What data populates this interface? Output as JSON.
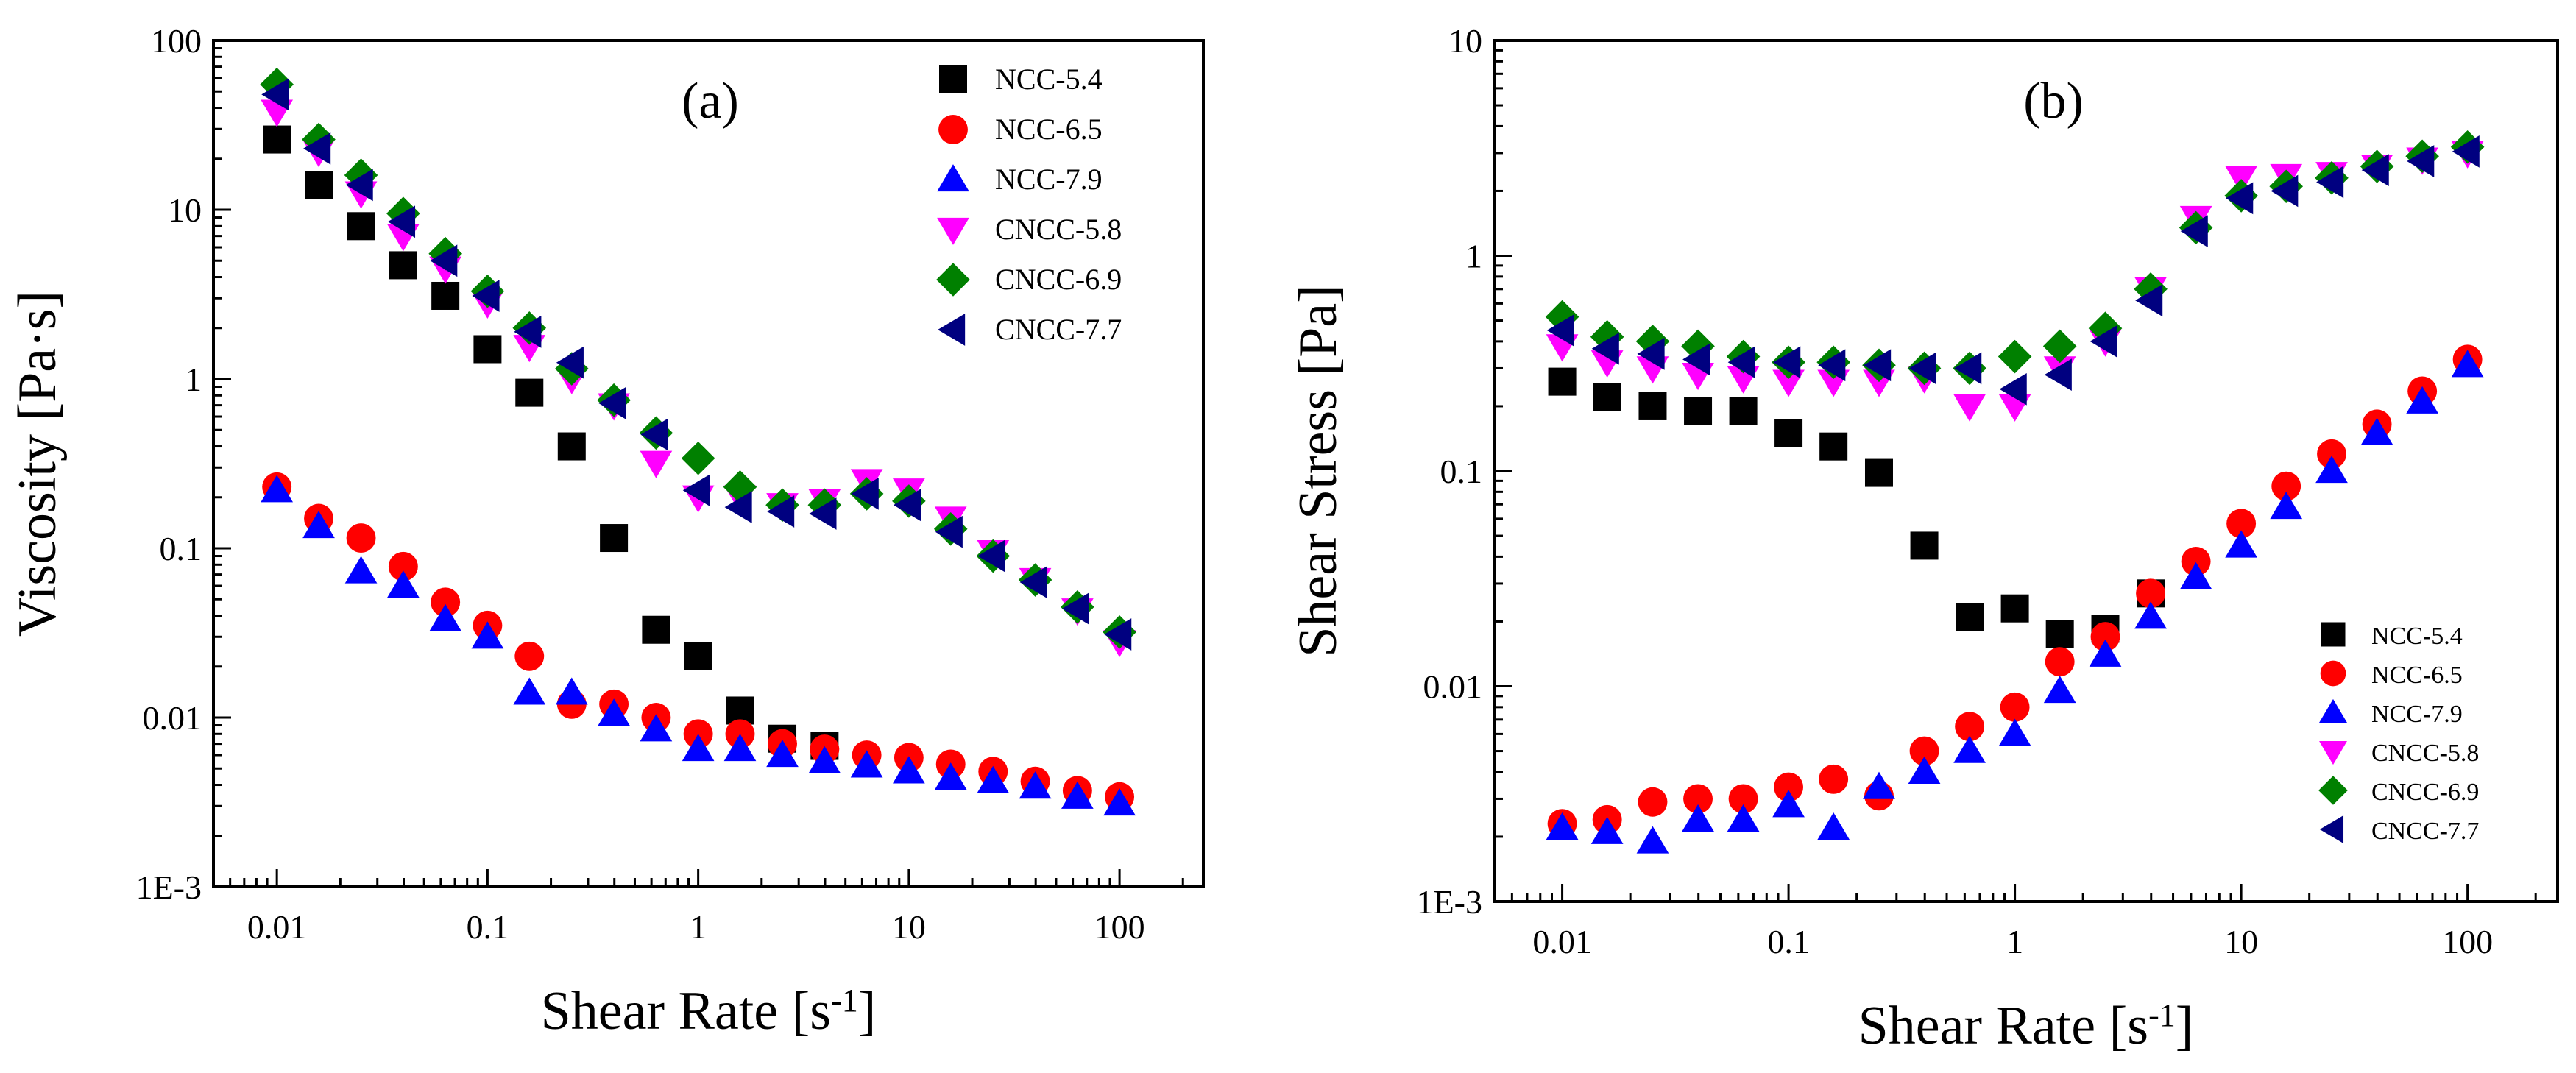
{
  "colors": {
    "NCC-5.4": "#000000",
    "NCC-6.5": "#ff0000",
    "NCC-7.9": "#0000ff",
    "CNCC-5.8": "#ff00ff",
    "CNCC-6.9": "#008000",
    "CNCC-7.7": "#000080"
  },
  "markers": {
    "NCC-5.4": "square",
    "NCC-6.5": "circle",
    "NCC-7.9": "triangle-up",
    "CNCC-5.8": "triangle-down",
    "CNCC-6.9": "diamond",
    "CNCC-7.7": "triangle-left"
  },
  "chart_data": [
    {
      "type": "scatter",
      "panel_label": "(a)",
      "title": "",
      "xlabel": "Shear Rate [s",
      "xlabel_sup": "-1",
      "xlabel_end": "]",
      "ylabel": "Viscosity [Pa·s]",
      "xscale": "log",
      "yscale": "log",
      "xlim": [
        0.005,
        250
      ],
      "ylim": [
        0.001,
        100
      ],
      "xticks": [
        0.01,
        0.1,
        1,
        10,
        100
      ],
      "xtick_labels": [
        "0.01",
        "0.1",
        "1",
        "10",
        "100"
      ],
      "yticks": [
        0.001,
        0.01,
        0.1,
        1,
        10,
        100
      ],
      "ytick_labels": [
        "1E-3",
        "0.01",
        "0.1",
        "1",
        "10",
        "100"
      ],
      "legend_position": "top-right",
      "x": [
        0.01,
        0.0158,
        0.0251,
        0.0398,
        0.0631,
        0.1,
        0.158,
        0.251,
        0.398,
        0.631,
        1,
        1.58,
        2.51,
        3.98,
        6.31,
        10,
        15.8,
        25.1,
        39.8,
        63.1,
        100
      ],
      "series": [
        {
          "name": "NCC-5.4",
          "values": [
            26,
            14,
            8,
            4.7,
            3.1,
            1.5,
            0.83,
            0.4,
            0.115,
            0.033,
            0.023,
            0.011,
            0.0075,
            0.0068,
            null,
            null,
            null,
            null,
            null,
            null,
            null
          ]
        },
        {
          "name": "NCC-6.5",
          "values": [
            0.23,
            0.15,
            0.115,
            0.078,
            0.048,
            0.035,
            0.023,
            0.012,
            0.012,
            0.01,
            0.008,
            0.008,
            0.007,
            0.0065,
            0.006,
            0.0058,
            0.0053,
            0.0048,
            0.0042,
            0.0037,
            0.0034
          ]
        },
        {
          "name": "NCC-7.9",
          "values": [
            0.22,
            0.135,
            0.073,
            0.06,
            0.038,
            0.03,
            0.014,
            0.014,
            0.0105,
            0.0085,
            0.0065,
            0.0065,
            0.006,
            0.0055,
            0.0052,
            0.0048,
            0.0044,
            0.0042,
            0.0039,
            0.0034,
            0.0031
          ]
        },
        {
          "name": "CNCC-5.8",
          "values": [
            38,
            22,
            12.5,
            7,
            4.5,
            2.8,
            1.55,
            1.0,
            0.7,
            0.32,
            0.2,
            0.2,
            0.18,
            0.19,
            0.25,
            0.22,
            0.15,
            0.095,
            0.065,
            0.043,
            0.028
          ]
        },
        {
          "name": "CNCC-6.9",
          "values": [
            55,
            26,
            16,
            9.5,
            5.5,
            3.3,
            2.0,
            1.15,
            0.75,
            0.48,
            0.34,
            0.23,
            0.18,
            0.18,
            0.21,
            0.19,
            0.13,
            0.09,
            0.065,
            0.045,
            0.032
          ]
        },
        {
          "name": "CNCC-7.7",
          "values": [
            48,
            23,
            14,
            8.5,
            5,
            3.1,
            1.9,
            1.25,
            0.72,
            0.47,
            0.22,
            0.175,
            0.165,
            0.16,
            0.21,
            0.18,
            0.125,
            0.09,
            0.063,
            0.044,
            0.031
          ]
        }
      ]
    },
    {
      "type": "scatter",
      "panel_label": "(b)",
      "title": "",
      "xlabel": "Shear Rate [s",
      "xlabel_sup": "-1",
      "xlabel_end": "]",
      "ylabel": "Shear Stress [Pa]",
      "xscale": "log",
      "yscale": "log",
      "xlim": [
        0.005,
        250
      ],
      "ylim": [
        0.001,
        10
      ],
      "xticks": [
        0.01,
        0.1,
        1,
        10,
        100
      ],
      "xtick_labels": [
        "0.01",
        "0.1",
        "1",
        "10",
        "100"
      ],
      "yticks": [
        0.001,
        0.01,
        0.1,
        1,
        10
      ],
      "ytick_labels": [
        "1E-3",
        "0.01",
        "0.1",
        "1",
        "10"
      ],
      "legend_position": "bottom-right",
      "x": [
        0.01,
        0.0158,
        0.0251,
        0.0398,
        0.0631,
        0.1,
        0.158,
        0.251,
        0.398,
        0.631,
        1,
        1.58,
        2.51,
        3.98,
        6.31,
        10,
        15.8,
        25.1,
        39.8,
        63.1,
        100
      ],
      "series": [
        {
          "name": "NCC-5.4",
          "values": [
            0.26,
            0.22,
            0.2,
            0.19,
            0.19,
            0.15,
            0.13,
            0.098,
            0.045,
            0.021,
            0.023,
            0.0175,
            0.0185,
            0.027,
            null,
            null,
            null,
            null,
            null,
            null,
            null
          ]
        },
        {
          "name": "NCC-6.5",
          "values": [
            0.0023,
            0.0024,
            0.0029,
            0.003,
            0.003,
            0.0034,
            0.0037,
            0.0031,
            0.005,
            0.0065,
            0.008,
            0.013,
            0.017,
            0.027,
            0.038,
            0.057,
            0.085,
            0.12,
            0.165,
            0.235,
            0.33
          ]
        },
        {
          "name": "NCC-7.9",
          "values": [
            0.0022,
            0.0021,
            0.0019,
            0.0024,
            0.0024,
            0.0028,
            0.0022,
            0.0034,
            0.004,
            0.005,
            0.006,
            0.0095,
            0.014,
            0.021,
            0.032,
            0.045,
            0.068,
            0.1,
            0.15,
            0.21,
            0.31
          ]
        },
        {
          "name": "CNCC-5.8",
          "values": [
            0.38,
            0.32,
            0.3,
            0.28,
            0.27,
            0.26,
            0.26,
            0.26,
            0.27,
            0.2,
            0.2,
            0.3,
            0.4,
            0.7,
            1.5,
            2.3,
            2.35,
            2.4,
            2.6,
            2.8,
            3.0
          ]
        },
        {
          "name": "CNCC-6.9",
          "values": [
            0.52,
            0.42,
            0.4,
            0.38,
            0.34,
            0.32,
            0.32,
            0.31,
            0.3,
            0.3,
            0.34,
            0.38,
            0.46,
            0.7,
            1.35,
            1.9,
            2.1,
            2.3,
            2.6,
            2.9,
            3.2
          ]
        },
        {
          "name": "CNCC-7.7",
          "values": [
            0.45,
            0.37,
            0.35,
            0.33,
            0.32,
            0.32,
            0.31,
            0.31,
            0.3,
            0.3,
            0.24,
            0.28,
            0.4,
            0.62,
            1.3,
            1.85,
            2.0,
            2.2,
            2.5,
            2.75,
            3.05
          ]
        }
      ]
    }
  ]
}
